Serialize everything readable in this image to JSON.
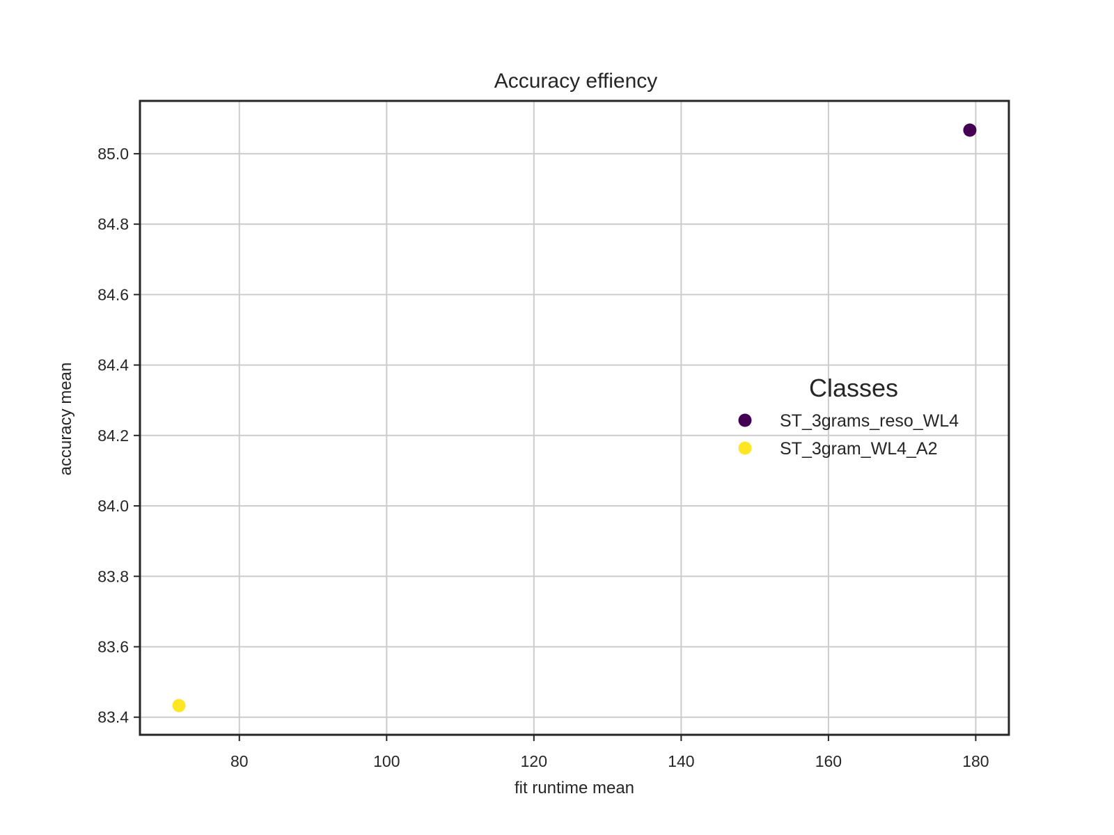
{
  "chart_data": {
    "type": "scatter",
    "title": "Accuracy effiency",
    "xlabel": "fit runtime mean",
    "ylabel": "accuracy mean",
    "xlim": [
      66.5,
      184.5
    ],
    "ylim": [
      83.35,
      85.15
    ],
    "xticks": [
      80,
      100,
      120,
      140,
      160,
      180
    ],
    "yticks": [
      83.4,
      83.6,
      83.8,
      84.0,
      84.2,
      84.4,
      84.6,
      84.8,
      85.0
    ],
    "grid": true,
    "legend": {
      "title": "Classes",
      "position": "center-right"
    },
    "series": [
      {
        "name": "ST_3grams_reso_WL4",
        "color": "#440154",
        "points": [
          {
            "x": 179.2,
            "y": 85.067
          }
        ]
      },
      {
        "name": "ST_3gram_WL4_A2",
        "color": "#fde725",
        "points": [
          {
            "x": 71.8,
            "y": 83.433
          }
        ]
      }
    ]
  }
}
